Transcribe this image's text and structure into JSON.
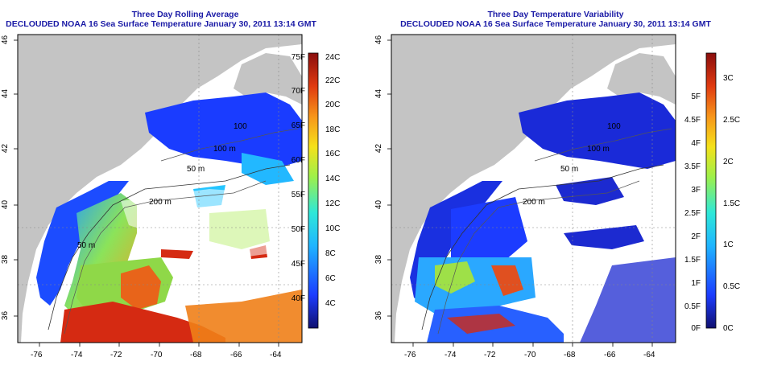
{
  "left_panel": {
    "title_line1": "Three Day Rolling Average",
    "title_line2": "DECLOUDED NOAA 16 Sea Surface Temperature January 30, 2011 13:14 GMT",
    "x_ticks": [
      "-76",
      "-74",
      "-72",
      "-70",
      "-68",
      "-66",
      "-64"
    ],
    "y_ticks": [
      "46",
      "44",
      "42",
      "40",
      "38",
      "36"
    ],
    "depth_labels": [
      "100",
      "100 m",
      "50 m",
      "200 m",
      "50 m"
    ],
    "colorbar_f": [
      "75F",
      "70F",
      "65F",
      "60F",
      "55F",
      "50F",
      "45F",
      "40F"
    ],
    "colorbar_c": [
      "24C",
      "22C",
      "20C",
      "18C",
      "16C",
      "14C",
      "12C",
      "10C",
      "8C",
      "6C",
      "4C"
    ]
  },
  "right_panel": {
    "title_line1": "Three Day Temperature Variability",
    "title_line2": "DECLOUDED NOAA 16 Sea Surface Temperature January 30, 2011 13:14 GMT",
    "x_ticks": [
      "-76",
      "-74",
      "-72",
      "-70",
      "-68",
      "-66",
      "-64"
    ],
    "y_ticks": [
      "46",
      "44",
      "42",
      "40",
      "38",
      "36"
    ],
    "depth_labels": [
      "100",
      "100 m",
      "50 m",
      "200 m"
    ],
    "colorbar_f": [
      "5F",
      "4.5F",
      "4F",
      "3.5F",
      "3F",
      "2.5F",
      "2F",
      "1.5F",
      "1F",
      "0.5F",
      "0F"
    ],
    "colorbar_c": [
      "3C",
      "2.5C",
      "2C",
      "1.5C",
      "1C",
      "0.5C",
      "0C"
    ]
  },
  "colors": {
    "land": "#c4c4c4",
    "title": "#1a1aa6",
    "no_data": "#ffffff"
  }
}
